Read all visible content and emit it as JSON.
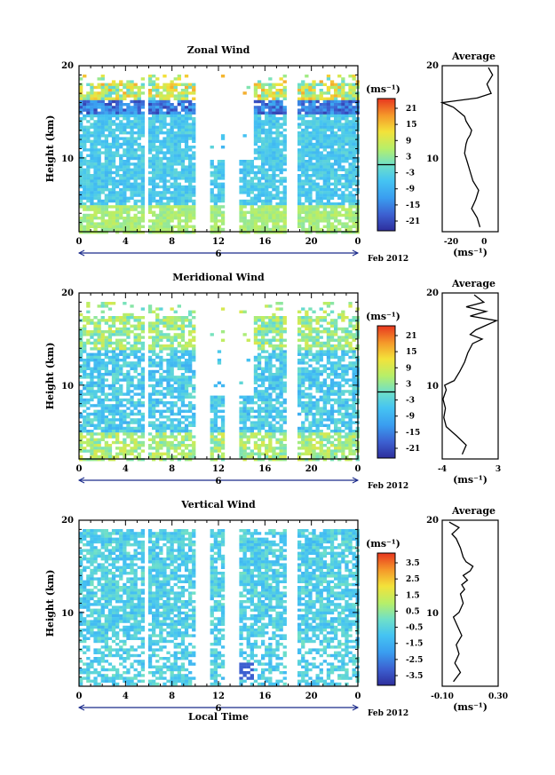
{
  "charts": [
    {
      "title": "Zonal Wind",
      "unit": "(ms⁻¹)",
      "ylabel": "Height (km)",
      "yticks": [
        "20",
        "10"
      ],
      "xticks": [
        "0",
        "4",
        "8",
        "12",
        "16",
        "20",
        "0"
      ],
      "date_marker": "6",
      "date_label": "Feb 2012",
      "cbar_ticks": [
        "21",
        "15",
        "9",
        "3",
        "-3",
        "-9",
        "-15",
        "-21"
      ],
      "avg_title": "Average",
      "avg_yticks": [
        "20",
        "10"
      ],
      "avg_xticks": [
        "-20",
        "0"
      ],
      "avg_unit": "(ms⁻¹)"
    },
    {
      "title": "Meridional Wind",
      "unit": "(ms⁻¹)",
      "ylabel": "Height (km)",
      "yticks": [
        "20",
        "10"
      ],
      "xticks": [
        "0",
        "4",
        "8",
        "12",
        "16",
        "20",
        "0"
      ],
      "date_marker": "6",
      "date_label": "Feb 2012",
      "cbar_ticks": [
        "21",
        "15",
        "9",
        "3",
        "-3",
        "-9",
        "-15",
        "-21"
      ],
      "avg_title": "Average",
      "avg_yticks": [
        "20",
        "10"
      ],
      "avg_xticks": [
        "-4",
        "3"
      ],
      "avg_unit": "(ms⁻¹)"
    },
    {
      "title": "Vertical Wind",
      "unit": "(ms⁻¹)",
      "ylabel": "Height (km)",
      "yticks": [
        "20",
        "10"
      ],
      "xticks": [
        "0",
        "4",
        "8",
        "12",
        "16",
        "20",
        "0"
      ],
      "date_marker": "6",
      "date_label": "Feb 2012",
      "xlabel": "Local Time",
      "cbar_ticks": [
        "3.5",
        "2.5",
        "1.5",
        "0.5",
        "-0.5",
        "-1.5",
        "-2.5",
        "-3.5"
      ],
      "avg_title": "Average",
      "avg_yticks": [
        "20",
        "10"
      ],
      "avg_xticks": [
        "-0.10",
        "0.30"
      ],
      "avg_unit": "(ms⁻¹)"
    }
  ],
  "chart_data": [
    {
      "type": "heatmap",
      "title": "Zonal Wind",
      "x_range_local_time_h": [
        0,
        24
      ],
      "y_range_km": [
        2,
        20
      ],
      "color_range": [
        -24,
        24
      ],
      "profile_type": "line",
      "profile_xlim": [
        -30,
        10
      ],
      "profile_x": [
        -3,
        -5,
        -9,
        -6,
        -4,
        -8,
        -10,
        -12,
        -14,
        -13,
        -12,
        -10,
        -9,
        -11,
        -13,
        -14,
        -18,
        -22,
        -30,
        -5,
        5,
        2,
        6,
        3
      ],
      "profile_heights_km": [
        2.5,
        3.5,
        4.5,
        5.5,
        6.5,
        7.5,
        8.5,
        9.5,
        10.5,
        11.5,
        12.0,
        12.5,
        13.0,
        13.5,
        14.0,
        14.5,
        15.0,
        15.5,
        16.0,
        16.5,
        17.0,
        18.0,
        19.0,
        19.8
      ]
    },
    {
      "type": "heatmap",
      "title": "Meridional Wind",
      "x_range_local_time_h": [
        0,
        24
      ],
      "y_range_km": [
        2,
        20
      ],
      "color_range": [
        -24,
        24
      ],
      "profile_type": "line",
      "profile_xlim": [
        -4,
        3
      ],
      "profile_x": [
        -1.5,
        -1.0,
        -2.2,
        -3.5,
        -3.8,
        -3.6,
        -3.9,
        -3.5,
        -3.7,
        -2.5,
        -1.8,
        -1.2,
        -0.8,
        -0.2,
        1.0,
        -0.5,
        0.2,
        1.5,
        2.8,
        -0.5,
        1.5,
        -1.0,
        1.2,
        0.0
      ],
      "profile_heights_km": [
        2.5,
        3.5,
        4.5,
        5.5,
        6.5,
        7.5,
        8.5,
        9.5,
        10.0,
        10.5,
        11.5,
        12.5,
        13.5,
        14.5,
        15.0,
        15.5,
        16.0,
        16.5,
        17.0,
        17.5,
        18.0,
        18.5,
        19.0,
        19.8
      ]
    },
    {
      "type": "heatmap",
      "title": "Vertical Wind",
      "x_range_local_time_h": [
        0,
        24
      ],
      "y_range_km": [
        2,
        20
      ],
      "color_range": [
        -4,
        4
      ],
      "profile_type": "line",
      "profile_xlim": [
        -0.1,
        0.3
      ],
      "profile_x": [
        -0.02,
        0.03,
        -0.01,
        0.02,
        0.0,
        0.04,
        0.01,
        -0.02,
        0.02,
        0.05,
        0.03,
        0.06,
        0.04,
        0.08,
        0.05,
        0.1,
        0.12,
        0.07,
        0.05,
        0.03,
        0.0,
        -0.03,
        0.02,
        -0.05
      ],
      "profile_heights_km": [
        2.5,
        3.5,
        4.5,
        5.5,
        6.5,
        7.5,
        8.5,
        9.5,
        10.0,
        11.0,
        12.0,
        12.5,
        13.0,
        13.5,
        14.0,
        14.5,
        15.0,
        15.5,
        16.0,
        17.0,
        18.0,
        18.5,
        19.2,
        19.8
      ]
    }
  ]
}
